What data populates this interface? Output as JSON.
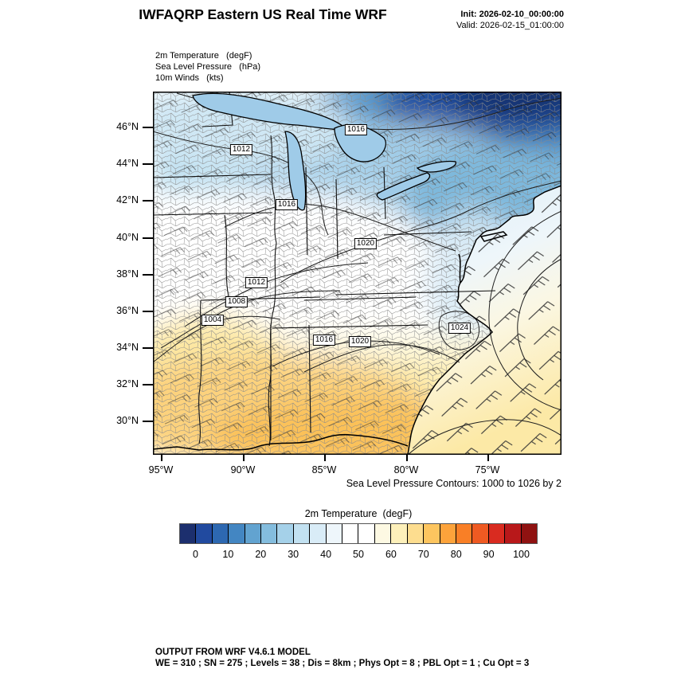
{
  "header": {
    "title": "IWFAQRP Eastern US Real Time WRF",
    "init": "Init: 2026-02-10_00:00:00",
    "valid": "Valid: 2026-02-15_01:00:00"
  },
  "fields": {
    "line1": "2m Temperature   (degF)",
    "line2": "Sea Level Pressure   (hPa)",
    "line3": "10m Winds   (kts)"
  },
  "map": {
    "lat_labels": [
      "46°N",
      "44°N",
      "42°N",
      "40°N",
      "38°N",
      "36°N",
      "34°N",
      "32°N",
      "30°N"
    ],
    "lon_labels": [
      "95°W",
      "90°W",
      "85°W",
      "80°W",
      "75°W"
    ],
    "pressure_labels": [
      "1016",
      "1012",
      "1016",
      "1020",
      "1012",
      "1008",
      "1004",
      "1016",
      "1020",
      "1024"
    ],
    "caption": "Sea Level Pressure Contours: 1000 to 1026 by 2"
  },
  "colorbar": {
    "title": "2m Temperature  (degF)",
    "tick_labels": [
      "0",
      "10",
      "20",
      "30",
      "40",
      "50",
      "60",
      "70",
      "80",
      "90",
      "100"
    ],
    "colors": [
      "#1c2f6e",
      "#214a9f",
      "#2d68b1",
      "#4386c2",
      "#62a3d0",
      "#84bdde",
      "#a5d1e9",
      "#c2e1f1",
      "#d9ecf7",
      "#eef6fb",
      "#ffffff",
      "#ffffff",
      "#fdf9e3",
      "#fdf0ba",
      "#fddd8f",
      "#fdc55f",
      "#fda33b",
      "#f97f26",
      "#ef5a22",
      "#d92b20",
      "#b8181a",
      "#8f1211"
    ]
  },
  "footer": {
    "line1": "OUTPUT FROM WRF V4.6.1 MODEL",
    "line2": "WE = 310 ; SN = 275 ; Levels = 38 ; Dis = 8km ; Phys Opt = 8 ; PBL Opt = 1 ; Cu Opt = 3"
  }
}
